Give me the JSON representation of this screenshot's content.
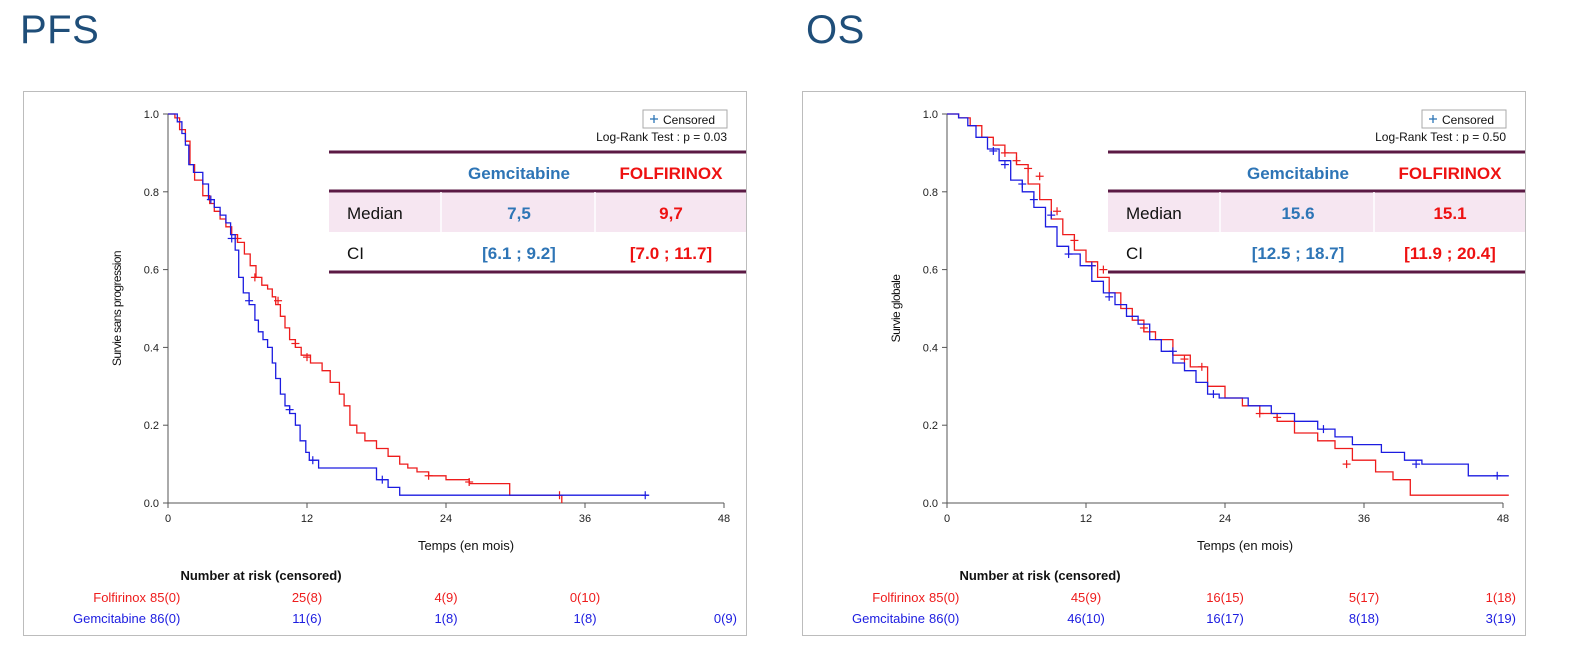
{
  "colors": {
    "folfirinox": "#ee1c1c",
    "gemcitabine": "#1c1ce0",
    "table_gem": "#2e75b6",
    "table_folf": "#ee1111",
    "table_rule": "#5b1a44",
    "table_median_bg": "#f6e6f1",
    "title": "#1f4e79"
  },
  "panels": [
    {
      "title": "PFS",
      "ylabel": "Survie sans progression",
      "xlabel": "Temps (en mois)",
      "legend_label": "Censored",
      "logrank": "Log-Rank Test : p = 0.03",
      "table": {
        "col1": "Gemcitabine",
        "col2": "FOLFIRINOX",
        "rows": [
          {
            "label": "Median",
            "gem": "7,5",
            "folf": "9,7"
          },
          {
            "label": "CI",
            "gem": "[6.1 ; 9.2]",
            "folf": "[7.0 ; 11.7]"
          }
        ]
      },
      "risk_title": "Number at risk (censored)",
      "risk": [
        {
          "name": "Folfirinox",
          "values": [
            "85(0)",
            "25(8)",
            "4(9)",
            "0(10)",
            ""
          ]
        },
        {
          "name": "Gemcitabine",
          "values": [
            "86(0)",
            "11(6)",
            "1(8)",
            "1(8)",
            "0(9)"
          ]
        }
      ]
    },
    {
      "title": "OS",
      "ylabel": "Survie globale",
      "xlabel": "Temps (en mois)",
      "legend_label": "Censored",
      "logrank": "Log-Rank Test : p = 0.50",
      "table": {
        "col1": "Gemcitabine",
        "col2": "FOLFIRINOX",
        "rows": [
          {
            "label": "Median",
            "gem": "15.6",
            "folf": "15.1"
          },
          {
            "label": "CI",
            "gem": "[12.5 ; 18.7]",
            "folf": "[11.9 ; 20.4]"
          }
        ]
      },
      "risk_title": "Number at risk (censored)",
      "risk": [
        {
          "name": "Folfirinox",
          "values": [
            "85(0)",
            "45(9)",
            "16(15)",
            "5(17)",
            "1(18)"
          ]
        },
        {
          "name": "Gemcitabine",
          "values": [
            "86(0)",
            "46(10)",
            "16(17)",
            "8(18)",
            "3(19)"
          ]
        }
      ]
    }
  ],
  "chart_data": [
    {
      "type": "line",
      "step": true,
      "xlim": [
        0,
        48
      ],
      "ylim": [
        0,
        1
      ],
      "xticks": [
        0,
        12,
        24,
        36,
        48
      ],
      "yticks": [
        "0.0",
        "0.2",
        "0.4",
        "0.6",
        "0.8",
        "1.0"
      ],
      "series": [
        {
          "name": "Folfirinox",
          "x": [
            0,
            0.6,
            1.0,
            1.5,
            1.9,
            2.3,
            3.0,
            3.6,
            4.0,
            4.5,
            5.0,
            5.5,
            6.0,
            6.6,
            7.1,
            7.6,
            8.1,
            8.6,
            9.0,
            9.3,
            9.7,
            10.1,
            10.5,
            11.0,
            11.5,
            12.3,
            13.3,
            14.0,
            14.8,
            15.2,
            15.7,
            16.3,
            17.0,
            18.0,
            19.0,
            20.0,
            20.7,
            21.5,
            22.5,
            24.0,
            26.0,
            29.5,
            34.0
          ],
          "y": [
            1.0,
            0.99,
            0.96,
            0.93,
            0.87,
            0.83,
            0.79,
            0.77,
            0.75,
            0.73,
            0.71,
            0.69,
            0.67,
            0.64,
            0.61,
            0.58,
            0.56,
            0.55,
            0.53,
            0.51,
            0.48,
            0.45,
            0.42,
            0.4,
            0.38,
            0.36,
            0.34,
            0.31,
            0.28,
            0.25,
            0.2,
            0.18,
            0.16,
            0.14,
            0.12,
            0.1,
            0.09,
            0.08,
            0.07,
            0.06,
            0.05,
            0.02,
            0.0
          ],
          "censored": [
            [
              6.0,
              0.68
            ],
            [
              7.5,
              0.58
            ],
            [
              9.5,
              0.52
            ],
            [
              11.0,
              0.41
            ],
            [
              12.0,
              0.375
            ],
            [
              22.5,
              0.07
            ],
            [
              26.0,
              0.054
            ],
            [
              33.8,
              0.02
            ]
          ]
        },
        {
          "name": "Gemcitabine",
          "x": [
            0,
            0.8,
            1.2,
            1.5,
            1.8,
            2.2,
            3.0,
            3.5,
            4.0,
            4.5,
            5.0,
            5.4,
            5.8,
            6.1,
            6.5,
            7.0,
            7.5,
            7.8,
            8.2,
            8.6,
            9.0,
            9.3,
            9.7,
            10.1,
            10.5,
            11.0,
            11.4,
            11.9,
            12.2,
            13.0,
            18.0,
            19.0,
            20.0,
            41.5
          ],
          "y": [
            1.0,
            0.98,
            0.95,
            0.92,
            0.87,
            0.85,
            0.82,
            0.78,
            0.76,
            0.74,
            0.72,
            0.69,
            0.65,
            0.58,
            0.54,
            0.51,
            0.47,
            0.44,
            0.42,
            0.4,
            0.36,
            0.32,
            0.28,
            0.25,
            0.23,
            0.2,
            0.16,
            0.13,
            0.11,
            0.09,
            0.06,
            0.04,
            0.02,
            0.02
          ],
          "censored": [
            [
              3.7,
              0.78
            ],
            [
              5.5,
              0.68
            ],
            [
              7.0,
              0.52
            ],
            [
              10.5,
              0.24
            ],
            [
              12.5,
              0.11
            ],
            [
              18.5,
              0.06
            ],
            [
              41.2,
              0.02
            ]
          ]
        }
      ]
    },
    {
      "type": "line",
      "step": true,
      "xlim": [
        0,
        48
      ],
      "ylim": [
        0,
        1
      ],
      "xticks": [
        0,
        12,
        24,
        36,
        48
      ],
      "yticks": [
        "0.0",
        "0.2",
        "0.4",
        "0.6",
        "0.8",
        "1.0"
      ],
      "series": [
        {
          "name": "Folfirinox",
          "x": [
            0,
            1.0,
            2.0,
            3.0,
            4.0,
            5.0,
            6.0,
            7.0,
            8.0,
            9.0,
            10.0,
            11.0,
            12.0,
            13.0,
            14.0,
            15.0,
            16.0,
            17.0,
            18.0,
            19.5,
            21.0,
            22.5,
            24.0,
            25.5,
            27.0,
            28.5,
            30.0,
            32.0,
            33.5,
            35.0,
            37.0,
            38.5,
            40.0,
            48.5
          ],
          "y": [
            1.0,
            0.99,
            0.97,
            0.94,
            0.92,
            0.9,
            0.87,
            0.82,
            0.78,
            0.73,
            0.69,
            0.65,
            0.62,
            0.58,
            0.54,
            0.5,
            0.47,
            0.44,
            0.42,
            0.38,
            0.35,
            0.3,
            0.27,
            0.25,
            0.23,
            0.21,
            0.18,
            0.16,
            0.14,
            0.11,
            0.08,
            0.06,
            0.02,
            0.02
          ],
          "censored": [
            [
              5.0,
              0.9
            ],
            [
              6.0,
              0.88
            ],
            [
              7.0,
              0.86
            ],
            [
              8.0,
              0.84
            ],
            [
              9.5,
              0.75
            ],
            [
              11.0,
              0.675
            ],
            [
              12.5,
              0.61
            ],
            [
              13.5,
              0.6
            ],
            [
              17.0,
              0.45
            ],
            [
              20.5,
              0.37
            ],
            [
              22.0,
              0.35
            ],
            [
              27.0,
              0.23
            ],
            [
              28.5,
              0.22
            ],
            [
              34.5,
              0.1
            ]
          ]
        },
        {
          "name": "Gemcitabine",
          "x": [
            0,
            1.0,
            1.8,
            2.5,
            3.5,
            4.5,
            5.5,
            6.5,
            7.5,
            8.5,
            9.5,
            10.5,
            11.5,
            12.5,
            13.5,
            14.5,
            15.5,
            16.5,
            17.5,
            18.5,
            19.5,
            20.5,
            21.5,
            22.5,
            23.5,
            26.0,
            28.0,
            30.0,
            32.0,
            33.5,
            35.0,
            37.5,
            39.5,
            41.0,
            45.0,
            48.5
          ],
          "y": [
            1.0,
            0.99,
            0.97,
            0.94,
            0.91,
            0.88,
            0.83,
            0.8,
            0.76,
            0.71,
            0.66,
            0.64,
            0.61,
            0.57,
            0.54,
            0.51,
            0.48,
            0.46,
            0.42,
            0.39,
            0.36,
            0.34,
            0.31,
            0.28,
            0.27,
            0.25,
            0.23,
            0.21,
            0.19,
            0.17,
            0.15,
            0.13,
            0.11,
            0.1,
            0.07,
            0.07
          ],
          "censored": [
            [
              4.0,
              0.905
            ],
            [
              5.0,
              0.87
            ],
            [
              6.5,
              0.82
            ],
            [
              7.5,
              0.78
            ],
            [
              9.0,
              0.74
            ],
            [
              10.5,
              0.64
            ],
            [
              12.5,
              0.61
            ],
            [
              14.0,
              0.53
            ],
            [
              19.5,
              0.39
            ],
            [
              23.0,
              0.28
            ],
            [
              32.5,
              0.19
            ],
            [
              40.5,
              0.1
            ],
            [
              47.5,
              0.07
            ]
          ]
        }
      ]
    }
  ]
}
